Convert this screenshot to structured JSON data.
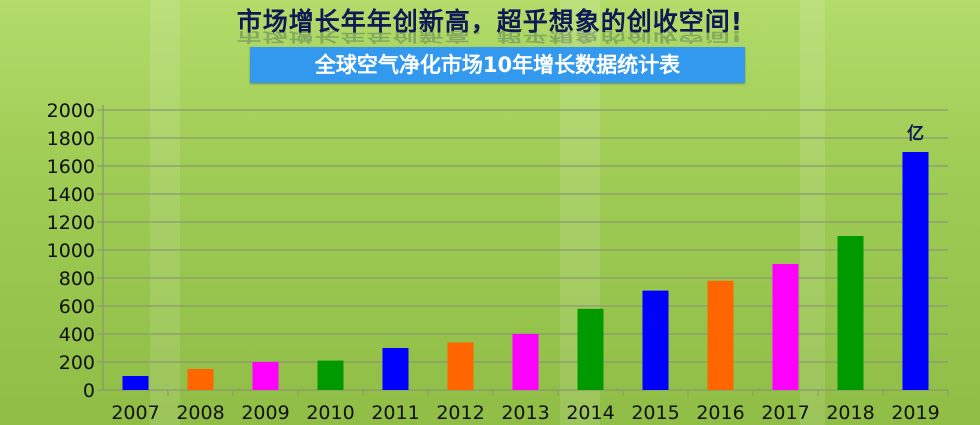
{
  "headline": "市场增长年年创新高，超乎想象的创收空间!",
  "chart_data": {
    "type": "bar",
    "title": "全球空气净化市场10年增长数据统计表",
    "unit_label": "亿",
    "categories": [
      "2007",
      "2008",
      "2009",
      "2010",
      "2011",
      "2012",
      "2013",
      "2014",
      "2015",
      "2016",
      "2017",
      "2018",
      "2019"
    ],
    "values": [
      100,
      150,
      200,
      210,
      300,
      340,
      400,
      580,
      710,
      780,
      900,
      1100,
      1700
    ],
    "bar_colors": [
      "#0000ff",
      "#ff6600",
      "#ff00ff",
      "#009900",
      "#0000ff",
      "#ff6600",
      "#ff00ff",
      "#009900",
      "#0000ff",
      "#ff6600",
      "#ff00ff",
      "#009900",
      "#0000ff"
    ],
    "ylim": [
      0,
      2000
    ],
    "yticks": [
      0,
      200,
      400,
      600,
      800,
      1000,
      1200,
      1400,
      1600,
      1800,
      2000
    ],
    "grid": true
  }
}
